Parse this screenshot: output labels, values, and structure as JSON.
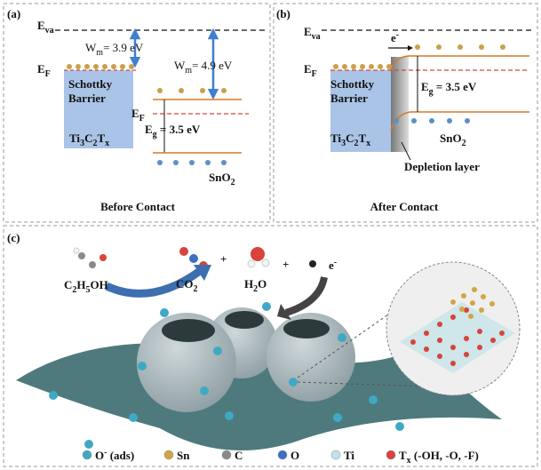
{
  "panel_a": {
    "label": "(a)",
    "vacuum_level": [
      {
        "text": "E"
      },
      {
        "sub": "va"
      }
    ],
    "work_function_1": [
      {
        "text": "W"
      },
      {
        "sub": "m"
      },
      {
        "text": "= 3.9 eV"
      }
    ],
    "work_function_2": [
      {
        "text": "W"
      },
      {
        "sub": "m"
      },
      {
        "text": "= 4.9 eV"
      }
    ],
    "fermi_level_1": [
      {
        "text": "E"
      },
      {
        "sub": "F"
      }
    ],
    "fermi_level_2": [
      {
        "text": "E"
      },
      {
        "sub": "F"
      }
    ],
    "barrier": [
      "Schottky",
      "Barrier"
    ],
    "metal": [
      {
        "text": "Ti"
      },
      {
        "sub": "3"
      },
      {
        "text": "C"
      },
      {
        "sub": "2"
      },
      {
        "text": "T"
      },
      {
        "sub": "x"
      }
    ],
    "band_gap": [
      {
        "text": "E"
      },
      {
        "sub": "g"
      },
      {
        "text": " = 3.5 eV"
      }
    ],
    "semiconductor": [
      {
        "text": "SnO"
      },
      {
        "sub": "2"
      }
    ],
    "caption": "Before Contact"
  },
  "panel_b": {
    "label": "(b)",
    "vacuum_level": [
      {
        "text": "E"
      },
      {
        "sub": "va"
      }
    ],
    "electron": [
      {
        "text": "e"
      },
      {
        "sup": "-"
      }
    ],
    "fermi_level": [
      {
        "text": "E"
      },
      {
        "sub": "F"
      }
    ],
    "barrier": [
      "Schottky",
      "Barrier"
    ],
    "band_gap": [
      {
        "text": "E"
      },
      {
        "sub": "g"
      },
      {
        "text": " = 3.5 eV"
      }
    ],
    "metal": [
      {
        "text": "Ti"
      },
      {
        "sub": "3"
      },
      {
        "text": "C"
      },
      {
        "sub": "2"
      },
      {
        "text": "T"
      },
      {
        "sub": "x"
      }
    ],
    "semiconductor": [
      {
        "text": "SnO"
      },
      {
        "sub": "2"
      }
    ],
    "depletion": "Depletion layer",
    "caption": "After Contact"
  },
  "panel_c": {
    "label": "(c)",
    "reactant": [
      {
        "text": "C"
      },
      {
        "sub": "2"
      },
      {
        "text": "H"
      },
      {
        "sub": "5"
      },
      {
        "text": "OH"
      }
    ],
    "product_1": [
      {
        "text": "CO"
      },
      {
        "sub": "2"
      }
    ],
    "plus_1": "+",
    "product_2": [
      {
        "text": "H"
      },
      {
        "sub": "2"
      },
      {
        "text": "O"
      }
    ],
    "plus_2": "+",
    "electron": [
      {
        "text": "e"
      },
      {
        "sup": "-"
      }
    ],
    "legend": [
      {
        "color": "#3fa9c4",
        "label": [
          {
            "text": "O"
          },
          {
            "sup": "-"
          },
          {
            "text": " (ads)"
          }
        ]
      },
      {
        "color": "#d2a544",
        "label": [
          {
            "text": "Sn"
          }
        ]
      },
      {
        "color": "#8a8a8a",
        "label": [
          {
            "text": "C"
          }
        ]
      },
      {
        "color": "#3f6fc4",
        "label": [
          {
            "text": "O"
          }
        ]
      },
      {
        "color": "#bfe3ea",
        "label": [
          {
            "text": "Ti"
          }
        ]
      },
      {
        "color": "#d8433a",
        "label": [
          {
            "text": "T"
          },
          {
            "sub": "x"
          },
          {
            "text": " (-OH, -O, -F)"
          }
        ]
      }
    ]
  }
}
